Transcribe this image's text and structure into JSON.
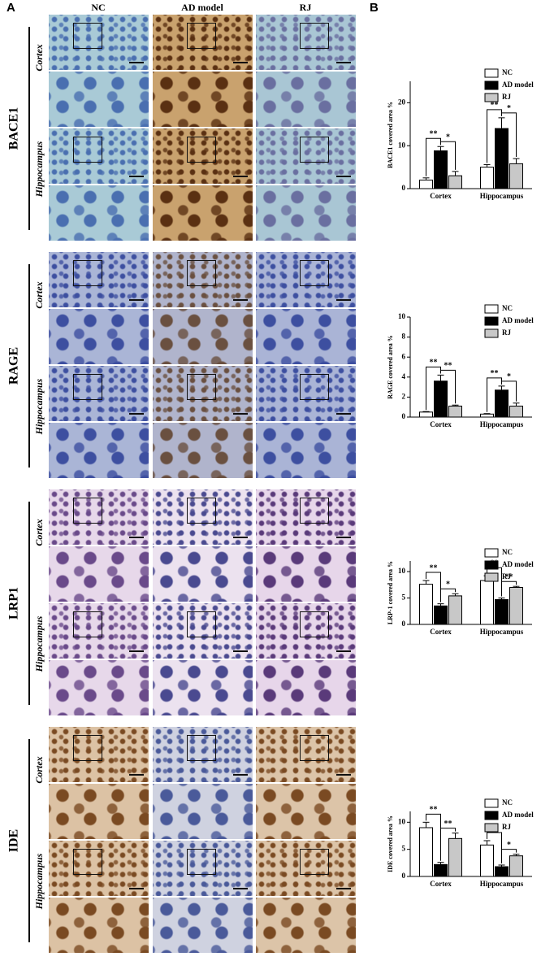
{
  "panel_labels": [
    "A",
    "B"
  ],
  "columns": [
    "NC",
    "AD model",
    "RJ"
  ],
  "stains": [
    "BACE1",
    "RAGE",
    "LRP1",
    "IDE"
  ],
  "regions": [
    "Cortex",
    "Hippocampus"
  ],
  "chart_data": [
    {
      "type": "bar",
      "y_label": "BACE1 covered area %",
      "categories": [
        "Cortex",
        "Hippocampus"
      ],
      "series": [
        {
          "name": "NC",
          "color": "#ffffff",
          "values": [
            2,
            5
          ],
          "errors": [
            0.5,
            0.6
          ]
        },
        {
          "name": "AD model",
          "color": "#000000",
          "values": [
            8.8,
            14
          ],
          "errors": [
            1,
            2.5
          ]
        },
        {
          "name": "RJ",
          "color": "#c8c8c8",
          "values": [
            3,
            5.8
          ],
          "errors": [
            1,
            1.2
          ]
        }
      ],
      "ylim": [
        0,
        25
      ],
      "yticks": [
        0,
        10,
        20
      ],
      "legend": "upper right",
      "annotations": [
        "**",
        "*",
        "**",
        "*"
      ]
    },
    {
      "type": "bar",
      "y_label": "RAGE covered area %",
      "categories": [
        "Cortex",
        "Hippocampus"
      ],
      "series": [
        {
          "name": "NC",
          "color": "#ffffff",
          "values": [
            0.5,
            0.3
          ],
          "errors": [
            0.05,
            0.05
          ]
        },
        {
          "name": "AD model",
          "color": "#000000",
          "values": [
            3.6,
            2.7
          ],
          "errors": [
            0.6,
            0.4
          ]
        },
        {
          "name": "RJ",
          "color": "#c8c8c8",
          "values": [
            1.1,
            1.1
          ],
          "errors": [
            0.1,
            0.3
          ]
        }
      ],
      "ylim": [
        0,
        10
      ],
      "yticks": [
        0,
        2,
        4,
        6,
        8,
        10
      ],
      "legend": "upper right",
      "annotations": [
        "**",
        "**",
        "**",
        "*"
      ]
    },
    {
      "type": "bar",
      "y_label": "LRP-1 covered area %",
      "categories": [
        "Cortex",
        "Hippocampus"
      ],
      "series": [
        {
          "name": "NC",
          "color": "#ffffff",
          "values": [
            7.6,
            8.3
          ],
          "errors": [
            0.7,
            0.9
          ]
        },
        {
          "name": "AD model",
          "color": "#000000",
          "values": [
            3.5,
            4.7
          ],
          "errors": [
            0.4,
            0.3
          ]
        },
        {
          "name": "RJ",
          "color": "#c8c8c8",
          "values": [
            5.4,
            7.0
          ],
          "errors": [
            0.4,
            0.2
          ]
        }
      ],
      "ylim": [
        0,
        12
      ],
      "yticks": [
        0,
        5,
        10
      ],
      "legend": "upper right",
      "annotations": [
        "**",
        "*",
        "**",
        "**"
      ]
    },
    {
      "type": "bar",
      "y_label": "IDE covered area %",
      "categories": [
        "Cortex",
        "Hippocampus"
      ],
      "series": [
        {
          "name": "NC",
          "color": "#ffffff",
          "values": [
            9.0,
            5.8
          ],
          "errors": [
            1,
            0.8
          ]
        },
        {
          "name": "AD model",
          "color": "#000000",
          "values": [
            2.2,
            1.8
          ],
          "errors": [
            0.4,
            0.3
          ]
        },
        {
          "name": "RJ",
          "color": "#c8c8c8",
          "values": [
            7.0,
            3.8
          ],
          "errors": [
            1,
            0.3
          ]
        }
      ],
      "ylim": [
        0,
        12
      ],
      "yticks": [
        0,
        5,
        10
      ],
      "legend": "upper right",
      "annotations": [
        "**",
        "**",
        "**",
        "*"
      ]
    }
  ]
}
